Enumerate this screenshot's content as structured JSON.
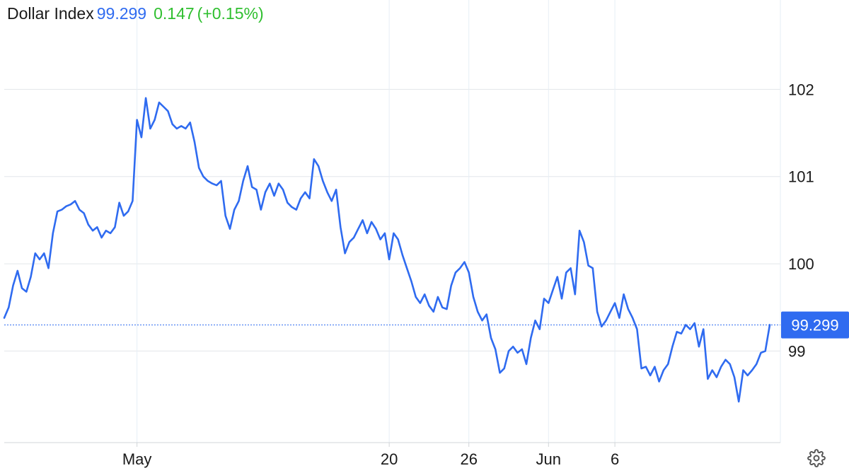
{
  "header": {
    "name": "Dollar Index",
    "price": "99.299",
    "change": "0.147",
    "change_pct": "(+0.15%)",
    "colors": {
      "name": "#1a1a1a",
      "price": "#2f6bf0",
      "change": "#2fbf2f"
    }
  },
  "settings_icon": "gear-icon",
  "chart_data": {
    "type": "line",
    "title": "",
    "xlabel": "",
    "ylabel": "",
    "ylim": [
      97.95,
      102.7
    ],
    "y_ticks": [
      99,
      100,
      101,
      102
    ],
    "y_tick_labels": [
      "99",
      "100",
      "101",
      "102"
    ],
    "x_tick_labels": [
      "May",
      "20",
      "26",
      "Jun",
      "6"
    ],
    "x_tick_dates": [
      "2025-05-01",
      "2025-05-20",
      "2025-05-26",
      "2025-06-01",
      "2025-06-06"
    ],
    "grid": true,
    "y_axis_position": "right",
    "last_value_label": "99.299",
    "last_value": 99.299,
    "line_color": "#2f6bf0",
    "series": [
      {
        "points": [
          [
            "2025-04-21 00:00",
            99.38
          ],
          [
            "2025-04-21 08:00",
            99.5
          ],
          [
            "2025-04-21 16:00",
            99.75
          ],
          [
            "2025-04-22 00:00",
            99.92
          ],
          [
            "2025-04-22 08:00",
            99.72
          ],
          [
            "2025-04-22 16:00",
            99.68
          ],
          [
            "2025-04-23 00:00",
            99.85
          ],
          [
            "2025-04-23 08:00",
            100.12
          ],
          [
            "2025-04-23 16:00",
            100.05
          ],
          [
            "2025-04-24 00:00",
            100.12
          ],
          [
            "2025-04-24 08:00",
            99.95
          ],
          [
            "2025-04-24 16:00",
            100.35
          ],
          [
            "2025-04-25 00:00",
            100.6
          ],
          [
            "2025-04-25 08:00",
            100.62
          ],
          [
            "2025-04-25 16:00",
            100.66
          ],
          [
            "2025-04-26 00:00",
            100.68
          ],
          [
            "2025-04-26 08:00",
            100.72
          ],
          [
            "2025-04-26 16:00",
            100.62
          ],
          [
            "2025-04-27 00:00",
            100.58
          ],
          [
            "2025-04-27 08:00",
            100.45
          ],
          [
            "2025-04-27 16:00",
            100.38
          ],
          [
            "2025-04-28 00:00",
            100.42
          ],
          [
            "2025-04-28 08:00",
            100.3
          ],
          [
            "2025-04-28 16:00",
            100.38
          ],
          [
            "2025-04-29 00:00",
            100.35
          ],
          [
            "2025-04-29 08:00",
            100.42
          ],
          [
            "2025-04-29 16:00",
            100.7
          ],
          [
            "2025-04-30 00:00",
            100.55
          ],
          [
            "2025-04-30 08:00",
            100.6
          ],
          [
            "2025-04-30 16:00",
            100.72
          ],
          [
            "2025-05-01 00:00",
            101.65
          ],
          [
            "2025-05-01 08:00",
            101.45
          ],
          [
            "2025-05-01 16:00",
            101.9
          ],
          [
            "2025-05-02 00:00",
            101.55
          ],
          [
            "2025-05-02 08:00",
            101.65
          ],
          [
            "2025-05-02 16:00",
            101.85
          ],
          [
            "2025-05-03 00:00",
            101.8
          ],
          [
            "2025-05-03 08:00",
            101.75
          ],
          [
            "2025-05-03 16:00",
            101.6
          ],
          [
            "2025-05-04 00:00",
            101.55
          ],
          [
            "2025-05-04 08:00",
            101.58
          ],
          [
            "2025-05-04 16:00",
            101.55
          ],
          [
            "2025-05-05 00:00",
            101.62
          ],
          [
            "2025-05-05 08:00",
            101.4
          ],
          [
            "2025-05-05 16:00",
            101.1
          ],
          [
            "2025-05-06 00:00",
            101.0
          ],
          [
            "2025-05-06 08:00",
            100.95
          ],
          [
            "2025-05-06 16:00",
            100.92
          ],
          [
            "2025-05-07 00:00",
            100.9
          ],
          [
            "2025-05-07 08:00",
            100.95
          ],
          [
            "2025-05-07 16:00",
            100.55
          ],
          [
            "2025-05-08 00:00",
            100.4
          ],
          [
            "2025-05-08 08:00",
            100.62
          ],
          [
            "2025-05-08 16:00",
            100.72
          ],
          [
            "2025-05-09 00:00",
            100.95
          ],
          [
            "2025-05-09 08:00",
            101.12
          ],
          [
            "2025-05-09 16:00",
            100.88
          ],
          [
            "2025-05-10 00:00",
            100.85
          ],
          [
            "2025-05-10 08:00",
            100.62
          ],
          [
            "2025-05-10 16:00",
            100.82
          ],
          [
            "2025-05-11 00:00",
            100.92
          ],
          [
            "2025-05-11 08:00",
            100.78
          ],
          [
            "2025-05-11 16:00",
            100.92
          ],
          [
            "2025-05-12 00:00",
            100.85
          ],
          [
            "2025-05-12 08:00",
            100.7
          ],
          [
            "2025-05-12 16:00",
            100.65
          ],
          [
            "2025-05-13 00:00",
            100.62
          ],
          [
            "2025-05-13 08:00",
            100.75
          ],
          [
            "2025-05-13 16:00",
            100.82
          ],
          [
            "2025-05-14 00:00",
            100.75
          ],
          [
            "2025-05-14 08:00",
            101.2
          ],
          [
            "2025-05-14 16:00",
            101.12
          ],
          [
            "2025-05-15 00:00",
            100.95
          ],
          [
            "2025-05-15 08:00",
            100.82
          ],
          [
            "2025-05-15 16:00",
            100.72
          ],
          [
            "2025-05-16 00:00",
            100.85
          ],
          [
            "2025-05-16 08:00",
            100.42
          ],
          [
            "2025-05-16 16:00",
            100.12
          ],
          [
            "2025-05-17 00:00",
            100.25
          ],
          [
            "2025-05-17 08:00",
            100.3
          ],
          [
            "2025-05-17 16:00",
            100.4
          ],
          [
            "2025-05-18 00:00",
            100.5
          ],
          [
            "2025-05-18 08:00",
            100.35
          ],
          [
            "2025-05-18 16:00",
            100.48
          ],
          [
            "2025-05-19 00:00",
            100.4
          ],
          [
            "2025-05-19 08:00",
            100.28
          ],
          [
            "2025-05-19 16:00",
            100.35
          ],
          [
            "2025-05-20 00:00",
            100.05
          ],
          [
            "2025-05-20 08:00",
            100.35
          ],
          [
            "2025-05-20 16:00",
            100.28
          ],
          [
            "2025-05-21 00:00",
            100.1
          ],
          [
            "2025-05-21 08:00",
            99.95
          ],
          [
            "2025-05-21 16:00",
            99.8
          ],
          [
            "2025-05-22 00:00",
            99.62
          ],
          [
            "2025-05-22 08:00",
            99.55
          ],
          [
            "2025-05-22 16:00",
            99.65
          ],
          [
            "2025-05-23 00:00",
            99.52
          ],
          [
            "2025-05-23 08:00",
            99.45
          ],
          [
            "2025-05-23 16:00",
            99.62
          ],
          [
            "2025-05-24 00:00",
            99.5
          ],
          [
            "2025-05-24 08:00",
            99.48
          ],
          [
            "2025-05-24 16:00",
            99.75
          ],
          [
            "2025-05-25 00:00",
            99.9
          ],
          [
            "2025-05-25 08:00",
            99.95
          ],
          [
            "2025-05-25 16:00",
            100.02
          ],
          [
            "2025-05-26 00:00",
            99.9
          ],
          [
            "2025-05-26 08:00",
            99.62
          ],
          [
            "2025-05-26 16:00",
            99.45
          ],
          [
            "2025-05-27 00:00",
            99.35
          ],
          [
            "2025-05-27 08:00",
            99.42
          ],
          [
            "2025-05-27 16:00",
            99.15
          ],
          [
            "2025-05-28 00:00",
            99.02
          ],
          [
            "2025-05-28 08:00",
            98.75
          ],
          [
            "2025-05-28 16:00",
            98.8
          ],
          [
            "2025-05-29 00:00",
            99.0
          ],
          [
            "2025-05-29 08:00",
            99.05
          ],
          [
            "2025-05-29 16:00",
            98.98
          ],
          [
            "2025-05-30 00:00",
            99.02
          ],
          [
            "2025-05-30 08:00",
            98.85
          ],
          [
            "2025-05-30 16:00",
            99.15
          ],
          [
            "2025-05-31 00:00",
            99.35
          ],
          [
            "2025-05-31 08:00",
            99.25
          ],
          [
            "2025-05-31 16:00",
            99.6
          ],
          [
            "2025-06-01 00:00",
            99.55
          ],
          [
            "2025-06-01 08:00",
            99.7
          ],
          [
            "2025-06-01 16:00",
            99.85
          ],
          [
            "2025-06-02 00:00",
            99.6
          ],
          [
            "2025-06-02 08:00",
            99.9
          ],
          [
            "2025-06-02 16:00",
            99.95
          ],
          [
            "2025-06-03 00:00",
            99.65
          ],
          [
            "2025-06-03 08:00",
            100.38
          ],
          [
            "2025-06-03 16:00",
            100.25
          ],
          [
            "2025-06-04 00:00",
            99.98
          ],
          [
            "2025-06-04 08:00",
            99.95
          ],
          [
            "2025-06-04 16:00",
            99.45
          ],
          [
            "2025-06-05 00:00",
            99.28
          ],
          [
            "2025-06-05 08:00",
            99.35
          ],
          [
            "2025-06-05 16:00",
            99.45
          ],
          [
            "2025-06-06 00:00",
            99.55
          ],
          [
            "2025-06-06 08:00",
            99.38
          ],
          [
            "2025-06-06 16:00",
            99.65
          ],
          [
            "2025-06-07 00:00",
            99.48
          ],
          [
            "2025-06-07 08:00",
            99.38
          ],
          [
            "2025-06-07 16:00",
            99.25
          ],
          [
            "2025-06-08 00:00",
            98.8
          ],
          [
            "2025-06-08 08:00",
            98.82
          ],
          [
            "2025-06-08 16:00",
            98.72
          ],
          [
            "2025-06-09 00:00",
            98.82
          ],
          [
            "2025-06-09 08:00",
            98.65
          ],
          [
            "2025-06-09 16:00",
            98.78
          ],
          [
            "2025-06-10 00:00",
            98.85
          ],
          [
            "2025-06-10 08:00",
            99.05
          ],
          [
            "2025-06-10 16:00",
            99.22
          ],
          [
            "2025-06-11 00:00",
            99.2
          ],
          [
            "2025-06-11 08:00",
            99.3
          ],
          [
            "2025-06-11 16:00",
            99.25
          ],
          [
            "2025-06-12 00:00",
            99.32
          ],
          [
            "2025-06-12 08:00",
            99.05
          ],
          [
            "2025-06-12 16:00",
            99.25
          ],
          [
            "2025-06-13 00:00",
            98.68
          ],
          [
            "2025-06-13 08:00",
            98.78
          ],
          [
            "2025-06-13 16:00",
            98.7
          ],
          [
            "2025-06-14 00:00",
            98.82
          ],
          [
            "2025-06-14 08:00",
            98.9
          ],
          [
            "2025-06-14 16:00",
            98.85
          ],
          [
            "2025-06-15 00:00",
            98.7
          ],
          [
            "2025-06-15 08:00",
            98.42
          ],
          [
            "2025-06-15 16:00",
            98.78
          ],
          [
            "2025-06-16 00:00",
            98.72
          ],
          [
            "2025-06-16 08:00",
            98.78
          ],
          [
            "2025-06-16 16:00",
            98.85
          ],
          [
            "2025-06-17 00:00",
            98.98
          ],
          [
            "2025-06-17 08:00",
            99.0
          ],
          [
            "2025-06-17 16:00",
            99.3
          ]
        ]
      }
    ]
  }
}
